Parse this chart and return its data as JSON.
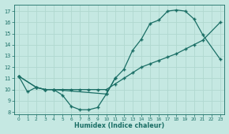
{
  "xlabel": "Humidex (Indice chaleur)",
  "xlim": [
    -0.5,
    23.5
  ],
  "ylim": [
    7.8,
    17.6
  ],
  "bg_color": "#c5e8e2",
  "line_color": "#1a6e65",
  "grid_color": "#b0d8d0",
  "curve1_x": [
    0,
    1,
    2,
    3,
    4,
    5,
    6,
    7,
    8,
    9,
    10,
    11
  ],
  "curve1_y": [
    11.2,
    9.8,
    10.2,
    10.0,
    10.0,
    9.5,
    8.5,
    8.2,
    8.2,
    8.4,
    9.6,
    11.0
  ],
  "curve2_x": [
    0,
    2,
    3,
    4,
    5,
    6,
    7,
    8,
    9,
    10,
    11,
    12,
    13,
    14,
    15,
    16,
    17,
    18,
    19,
    20,
    21,
    23
  ],
  "curve2_y": [
    11.2,
    10.2,
    10.0,
    10.0,
    10.0,
    10.0,
    10.0,
    10.0,
    10.0,
    10.0,
    10.5,
    11.0,
    11.5,
    12.0,
    12.3,
    12.6,
    12.9,
    13.2,
    13.6,
    14.0,
    14.4,
    16.0
  ],
  "curve3_x": [
    0,
    2,
    3,
    4,
    10,
    11,
    12,
    13,
    14,
    15,
    16,
    17,
    18,
    19,
    20,
    21,
    23
  ],
  "curve3_y": [
    11.2,
    10.2,
    10.0,
    10.0,
    9.6,
    11.0,
    11.8,
    13.5,
    14.5,
    15.9,
    16.2,
    17.0,
    17.1,
    17.0,
    16.3,
    14.9,
    12.7
  ]
}
